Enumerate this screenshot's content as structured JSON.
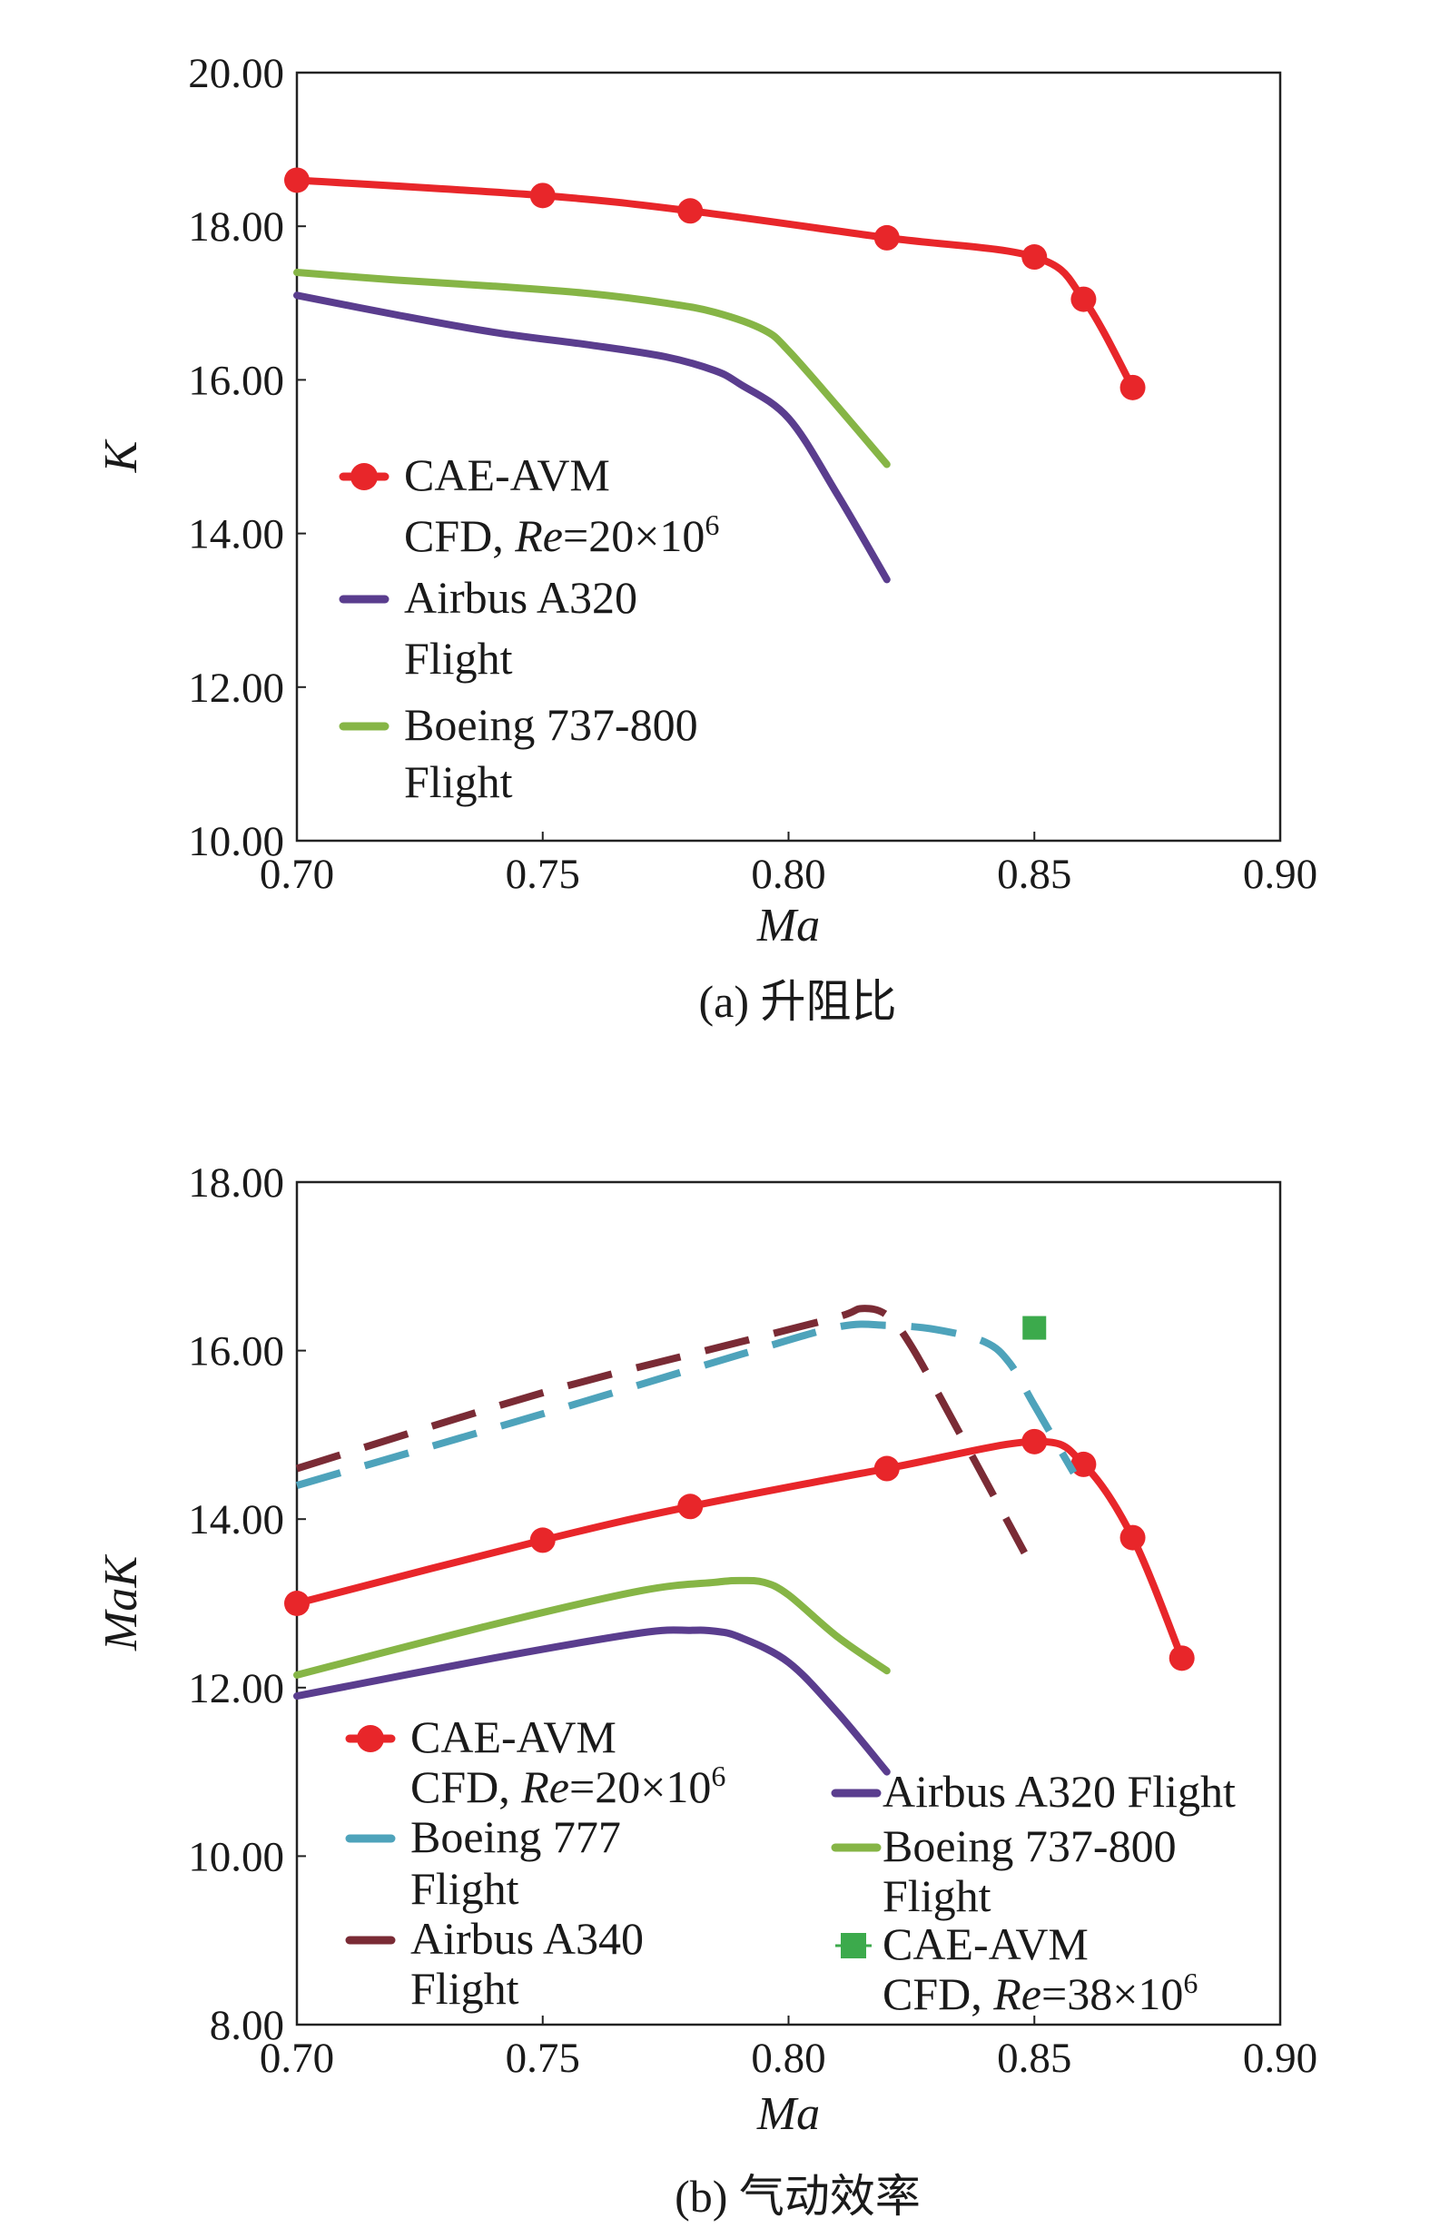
{
  "chart_data": [
    {
      "type": "line",
      "caption": "(a) 升阻比",
      "xlabel": "Ma",
      "ylabel": "K",
      "xlim": [
        0.7,
        0.9
      ],
      "ylim": [
        10.0,
        20.0
      ],
      "xticks": [
        "0.70",
        "0.75",
        "0.80",
        "0.85",
        "0.90"
      ],
      "yticks": [
        "10.00",
        "12.00",
        "14.00",
        "16.00",
        "18.00",
        "20.00"
      ],
      "series": [
        {
          "name": "CAE-AVM CFD, Re=20×10⁶",
          "legend_lines": [
            "CAE-AVM",
            "CFD, Re=20×10⁶"
          ],
          "color": "#e8262a",
          "style": "solid-markers",
          "x": [
            0.7,
            0.75,
            0.78,
            0.82,
            0.85,
            0.86,
            0.87
          ],
          "y": [
            18.6,
            18.4,
            18.2,
            17.85,
            17.6,
            17.05,
            15.9
          ]
        },
        {
          "name": "Airbus A320 Flight",
          "legend_lines": [
            "Airbus A320",
            "Flight"
          ],
          "color": "#5a3d8e",
          "style": "solid",
          "x": [
            0.7,
            0.72,
            0.74,
            0.76,
            0.775,
            0.785,
            0.79,
            0.8,
            0.81,
            0.82
          ],
          "y": [
            17.1,
            16.85,
            16.62,
            16.45,
            16.3,
            16.12,
            15.95,
            15.5,
            14.5,
            13.4
          ]
        },
        {
          "name": "Boeing 737-800 Flight",
          "legend_lines": [
            "Boeing 737-800",
            "Flight"
          ],
          "color": "#86b546",
          "style": "solid",
          "x": [
            0.7,
            0.72,
            0.74,
            0.76,
            0.775,
            0.785,
            0.795,
            0.8,
            0.81,
            0.82
          ],
          "y": [
            17.4,
            17.3,
            17.22,
            17.12,
            17.0,
            16.88,
            16.65,
            16.38,
            15.65,
            14.9
          ]
        }
      ]
    },
    {
      "type": "line",
      "caption": "(b) 气动效率",
      "xlabel": "Ma",
      "ylabel": "MaK",
      "xlim": [
        0.7,
        0.9
      ],
      "ylim": [
        8.0,
        18.0
      ],
      "xticks": [
        "0.70",
        "0.75",
        "0.80",
        "0.85",
        "0.90"
      ],
      "yticks": [
        "8.00",
        "10.00",
        "12.00",
        "14.00",
        "16.00",
        "18.00"
      ],
      "series": [
        {
          "name": "CAE-AVM CFD, Re=20×10⁶",
          "legend_lines": [
            "CAE-AVM",
            "CFD, Re=20×10⁶"
          ],
          "color": "#e8262a",
          "style": "solid-markers",
          "x": [
            0.7,
            0.75,
            0.78,
            0.82,
            0.85,
            0.86,
            0.87,
            0.88
          ],
          "y": [
            13.0,
            13.75,
            14.15,
            14.6,
            14.92,
            14.65,
            13.78,
            12.35
          ]
        },
        {
          "name": "Boeing 777 Flight",
          "legend_lines": [
            "Boeing 777",
            "Flight"
          ],
          "color": "#4ea3bb",
          "style": "dashed",
          "x": [
            0.7,
            0.75,
            0.79,
            0.81,
            0.82,
            0.83,
            0.84,
            0.845,
            0.85,
            0.858
          ],
          "y": [
            14.4,
            15.25,
            15.95,
            16.28,
            16.3,
            16.25,
            16.1,
            15.85,
            15.35,
            14.55
          ]
        },
        {
          "name": "Airbus A340 Flight",
          "legend_lines": [
            "Airbus A340",
            "Flight"
          ],
          "color": "#7a2b35",
          "style": "dashed",
          "x": [
            0.7,
            0.75,
            0.79,
            0.81,
            0.815,
            0.82,
            0.825,
            0.835,
            0.848
          ],
          "y": [
            14.6,
            15.5,
            16.1,
            16.4,
            16.5,
            16.42,
            16.05,
            15.0,
            13.6
          ]
        },
        {
          "name": "Airbus A320 Flight",
          "legend_lines": [
            "Airbus A320 Flight"
          ],
          "color": "#5a3d8e",
          "style": "solid",
          "x": [
            0.7,
            0.74,
            0.77,
            0.78,
            0.785,
            0.79,
            0.8,
            0.81,
            0.82
          ],
          "y": [
            11.9,
            12.35,
            12.65,
            12.68,
            12.67,
            12.6,
            12.3,
            11.7,
            11.0
          ]
        },
        {
          "name": "Boeing 737-800 Flight",
          "legend_lines": [
            "Boeing 737-800",
            "Flight"
          ],
          "color": "#86b546",
          "style": "solid",
          "x": [
            0.7,
            0.74,
            0.77,
            0.785,
            0.79,
            0.795,
            0.8,
            0.81,
            0.82
          ],
          "y": [
            12.15,
            12.75,
            13.15,
            13.25,
            13.27,
            13.25,
            13.1,
            12.6,
            12.2
          ]
        },
        {
          "name": "CAE-AVM CFD, Re=38×10⁶",
          "legend_lines": [
            "CAE-AVM",
            "CFD, Re=38×10⁶"
          ],
          "color": "#3caa4c",
          "style": "square-marker",
          "x": [
            0.85
          ],
          "y": [
            16.27
          ]
        }
      ]
    }
  ]
}
